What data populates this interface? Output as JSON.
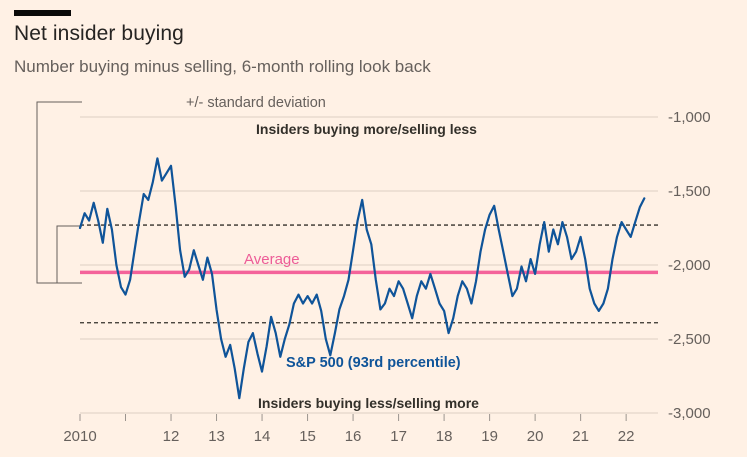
{
  "header": {
    "title": "Net insider buying",
    "subtitle": "Number buying minus selling, 6-month rolling look back"
  },
  "annotations": {
    "std_dev_label": "+/- standard deviation",
    "buying_more": "Insiders buying more/selling less",
    "average_label": "Average",
    "series_label": "S&P 500 (93rd percentile)",
    "buying_less": "Insiders buying less/selling more"
  },
  "colors": {
    "background": "#FFF1E5",
    "line": "#0F5499",
    "average": "#F4639A",
    "dashed": "#33302A",
    "grid": "#DCCFC3",
    "tick": "#9B948E",
    "text": "#33302A",
    "muted": "#66605C"
  },
  "chart_data": {
    "type": "line",
    "title": "Net insider buying",
    "subtitle": "Number buying minus selling, 6-month rolling look back",
    "xlabel": "",
    "ylabel": "",
    "xlim": [
      2010,
      2022.7
    ],
    "ylim": [
      -3000,
      -1000
    ],
    "grid": "horizontal",
    "average": -2050,
    "std_upper": -1730,
    "std_lower": -2390,
    "y_ticks": [
      {
        "value": -1000,
        "label": "-1,000"
      },
      {
        "value": -1500,
        "label": "-1,500"
      },
      {
        "value": -2000,
        "label": "-2,000"
      },
      {
        "value": -2500,
        "label": "-2,500"
      },
      {
        "value": -3000,
        "label": "-3,000"
      }
    ],
    "x_ticks": [
      {
        "value": 2010,
        "label": "2010"
      },
      {
        "value": 2011,
        "label": ""
      },
      {
        "value": 2012,
        "label": "12"
      },
      {
        "value": 2013,
        "label": "13"
      },
      {
        "value": 2014,
        "label": "14"
      },
      {
        "value": 2015,
        "label": "15"
      },
      {
        "value": 2016,
        "label": "16"
      },
      {
        "value": 2017,
        "label": "17"
      },
      {
        "value": 2018,
        "label": "18"
      },
      {
        "value": 2019,
        "label": "19"
      },
      {
        "value": 2020,
        "label": "20"
      },
      {
        "value": 2021,
        "label": "21"
      },
      {
        "value": 2022,
        "label": "22"
      }
    ],
    "series": [
      {
        "name": "S&P 500 (93rd percentile)",
        "x_start": 2010.0,
        "x_step": 0.1,
        "values": [
          -1750,
          -1650,
          -1700,
          -1580,
          -1700,
          -1850,
          -1620,
          -1760,
          -2000,
          -2150,
          -2200,
          -2100,
          -1900,
          -1700,
          -1520,
          -1560,
          -1440,
          -1280,
          -1430,
          -1380,
          -1330,
          -1600,
          -1900,
          -2080,
          -2030,
          -1900,
          -2000,
          -2100,
          -1950,
          -2060,
          -2300,
          -2500,
          -2620,
          -2540,
          -2700,
          -2900,
          -2700,
          -2520,
          -2460,
          -2600,
          -2720,
          -2550,
          -2350,
          -2460,
          -2620,
          -2500,
          -2400,
          -2260,
          -2200,
          -2260,
          -2210,
          -2260,
          -2200,
          -2310,
          -2500,
          -2610,
          -2460,
          -2300,
          -2210,
          -2100,
          -1900,
          -1700,
          -1560,
          -1760,
          -1860,
          -2100,
          -2300,
          -2260,
          -2160,
          -2210,
          -2110,
          -2160,
          -2260,
          -2360,
          -2210,
          -2110,
          -2160,
          -2060,
          -2160,
          -2260,
          -2310,
          -2460,
          -2360,
          -2210,
          -2110,
          -2160,
          -2260,
          -2110,
          -1910,
          -1760,
          -1660,
          -1600,
          -1760,
          -1910,
          -2060,
          -2210,
          -2160,
          -2010,
          -2110,
          -1960,
          -2060,
          -1860,
          -1710,
          -1910,
          -1760,
          -1860,
          -1710,
          -1810,
          -1960,
          -1910,
          -1810,
          -1960,
          -2160,
          -2260,
          -2310,
          -2260,
          -2160,
          -1960,
          -1810,
          -1710,
          -1760,
          -1810,
          -1710,
          -1610,
          -1550
        ]
      }
    ]
  }
}
